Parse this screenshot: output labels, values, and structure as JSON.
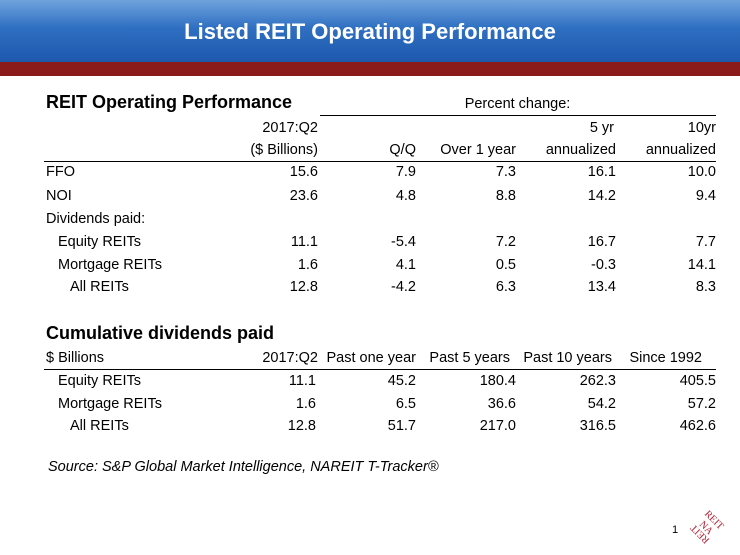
{
  "slide": {
    "title": "Listed REIT Operating Performance",
    "page_number": "1",
    "source": "Source: S&P Global Market Intelligence, NAREIT T-Tracker®"
  },
  "colors": {
    "banner": "#2f6fc2",
    "red_bar": "#8b1a1a",
    "logo": "#b01c2e"
  },
  "logo": {
    "line1": "REIT",
    "line2": "NA",
    "line3": "REIT"
  },
  "table1": {
    "title": "REIT Operating Performance",
    "group_header": "Percent change:",
    "col_header_top": [
      "2017:Q2",
      "",
      "",
      "5 yr",
      "10yr"
    ],
    "col_header_bottom": [
      "($ Billions)",
      "Q/Q",
      "Over 1 year",
      "annualized",
      "annualized"
    ],
    "rows": [
      {
        "label": "FFO",
        "values": [
          "15.6",
          "7.9",
          "7.3",
          "16.1",
          "10.0"
        ]
      },
      {
        "label": "NOI",
        "values": [
          "23.6",
          "4.8",
          "8.8",
          "14.2",
          "9.4"
        ]
      },
      {
        "label": "Dividends paid:",
        "values": [
          "",
          "",
          "",
          "",
          ""
        ]
      },
      {
        "label": "Equity REITs",
        "values": [
          "11.1",
          "-5.4",
          "7.2",
          "16.7",
          "7.7"
        ]
      },
      {
        "label": "Mortgage REITs",
        "values": [
          "1.6",
          "4.1",
          "0.5",
          "-0.3",
          "14.1"
        ]
      },
      {
        "label": "All REITs",
        "values": [
          "12.8",
          "-4.2",
          "6.3",
          "13.4",
          "8.3"
        ]
      }
    ]
  },
  "table2": {
    "title": "Cumulative dividends paid",
    "unit_label": "$ Billions",
    "headers": [
      "2017:Q2",
      "Past one year",
      "Past 5 years",
      "Past 10 years",
      "Since 1992"
    ],
    "rows": [
      {
        "label": "Equity REITs",
        "values": [
          "11.1",
          "45.2",
          "180.4",
          "262.3",
          "405.5"
        ]
      },
      {
        "label": "Mortgage REITs",
        "values": [
          "1.6",
          "6.5",
          "36.6",
          "54.2",
          "57.2"
        ]
      },
      {
        "label": "All REITs",
        "values": [
          "12.8",
          "51.7",
          "217.0",
          "316.5",
          "462.6"
        ]
      }
    ]
  }
}
